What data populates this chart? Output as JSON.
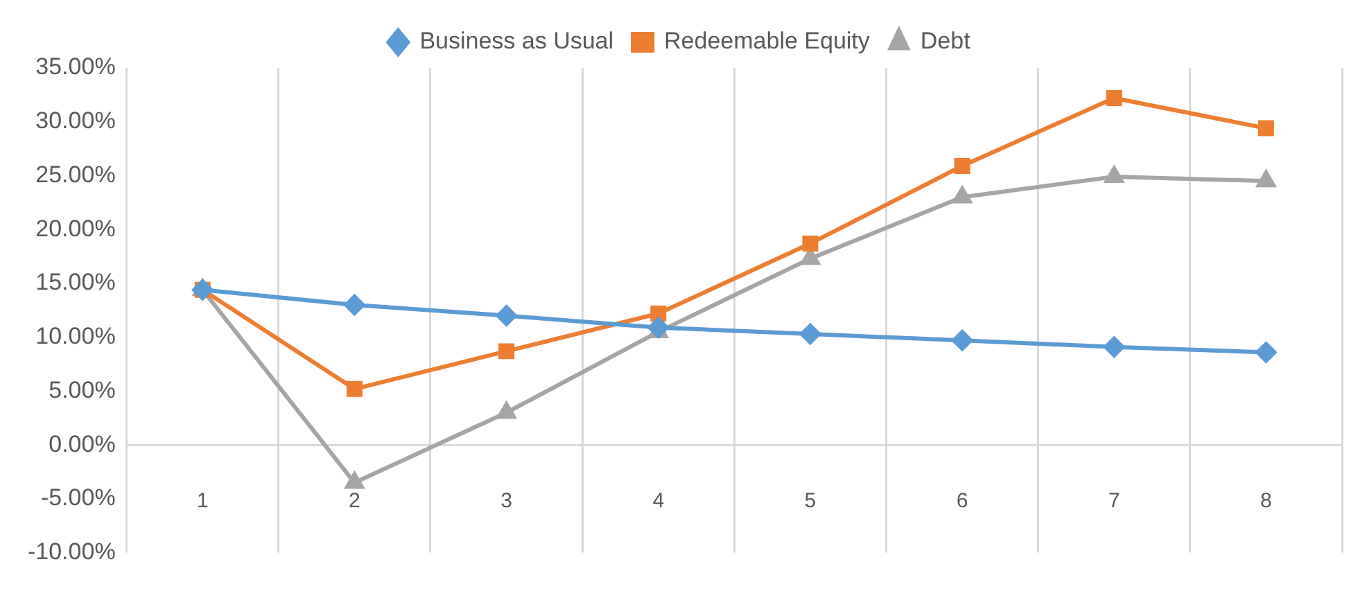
{
  "chart_data": {
    "type": "line",
    "categories": [
      "1",
      "2",
      "3",
      "4",
      "5",
      "6",
      "7",
      "8"
    ],
    "series": [
      {
        "name": "Business as Usual",
        "color": "#5b9bd5",
        "marker": "diamond",
        "values": [
          14.4,
          13.0,
          12.0,
          10.9,
          10.3,
          9.7,
          9.1,
          8.6
        ]
      },
      {
        "name": "Redeemable Equity",
        "color": "#ed7d31",
        "marker": "square",
        "values": [
          14.4,
          5.2,
          8.7,
          12.2,
          18.7,
          25.9,
          32.2,
          29.4
        ]
      },
      {
        "name": "Debt",
        "color": "#a5a5a5",
        "marker": "triangle",
        "values": [
          14.4,
          -3.5,
          3.0,
          10.5,
          17.3,
          23.0,
          24.9,
          24.5
        ]
      }
    ],
    "ylim": [
      -10,
      35
    ],
    "yticks": [
      {
        "value": -10,
        "label": "-10.00%"
      },
      {
        "value": -5,
        "label": "-5.00%"
      },
      {
        "value": 0,
        "label": "0.00%"
      },
      {
        "value": 5,
        "label": "5.00%"
      },
      {
        "value": 10,
        "label": "10.00%"
      },
      {
        "value": 15,
        "label": "15.00%"
      },
      {
        "value": 20,
        "label": "20.00%"
      },
      {
        "value": 25,
        "label": "25.00%"
      },
      {
        "value": 30,
        "label": "30.00%"
      },
      {
        "value": 35,
        "label": "35.00%"
      }
    ],
    "grid": "x",
    "legend": "top",
    "line_style": "solid"
  }
}
